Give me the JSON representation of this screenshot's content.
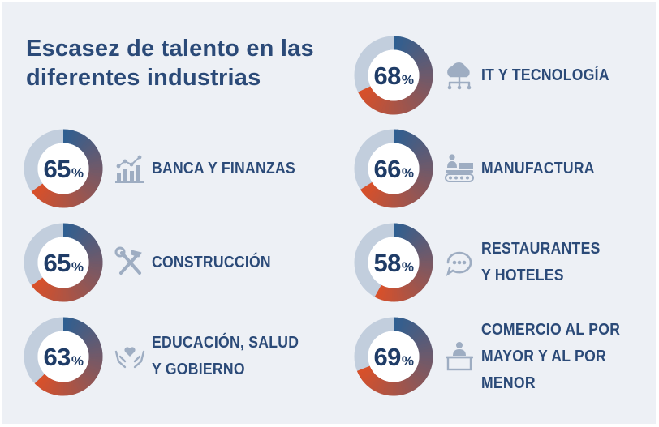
{
  "chart_data": {
    "type": "donut",
    "title": "Escasez de talento en las diferentes industrias",
    "unit": "%",
    "max": 100,
    "colors": {
      "track": "#c2cedd",
      "arc_start": "#2f5f91",
      "arc_end": "#d8502a"
    },
    "items": [
      {
        "value": 68,
        "label_lines": [
          "IT Y TECNOLOGÍA"
        ],
        "icon": "cloud-network-icon"
      },
      {
        "value": 65,
        "label_lines": [
          "BANCA Y FINANZAS"
        ],
        "icon": "growth-chart-icon"
      },
      {
        "value": 66,
        "label_lines": [
          "MANUFACTURA"
        ],
        "icon": "conveyor-icon"
      },
      {
        "value": 65,
        "label_lines": [
          "CONSTRUCCIÓN"
        ],
        "icon": "tools-icon"
      },
      {
        "value": 58,
        "label_lines": [
          "RESTAURANTES",
          "Y HOTELES"
        ],
        "icon": "service-bell-icon"
      },
      {
        "value": 63,
        "label_lines": [
          "EDUCACIÓN, SALUD",
          "Y GOBIERNO"
        ],
        "icon": "heart-hands-icon"
      },
      {
        "value": 69,
        "label_lines": [
          "COMERCIO AL POR",
          "MAYOR Y AL POR",
          "MENOR"
        ],
        "icon": "shop-person-icon"
      }
    ]
  }
}
